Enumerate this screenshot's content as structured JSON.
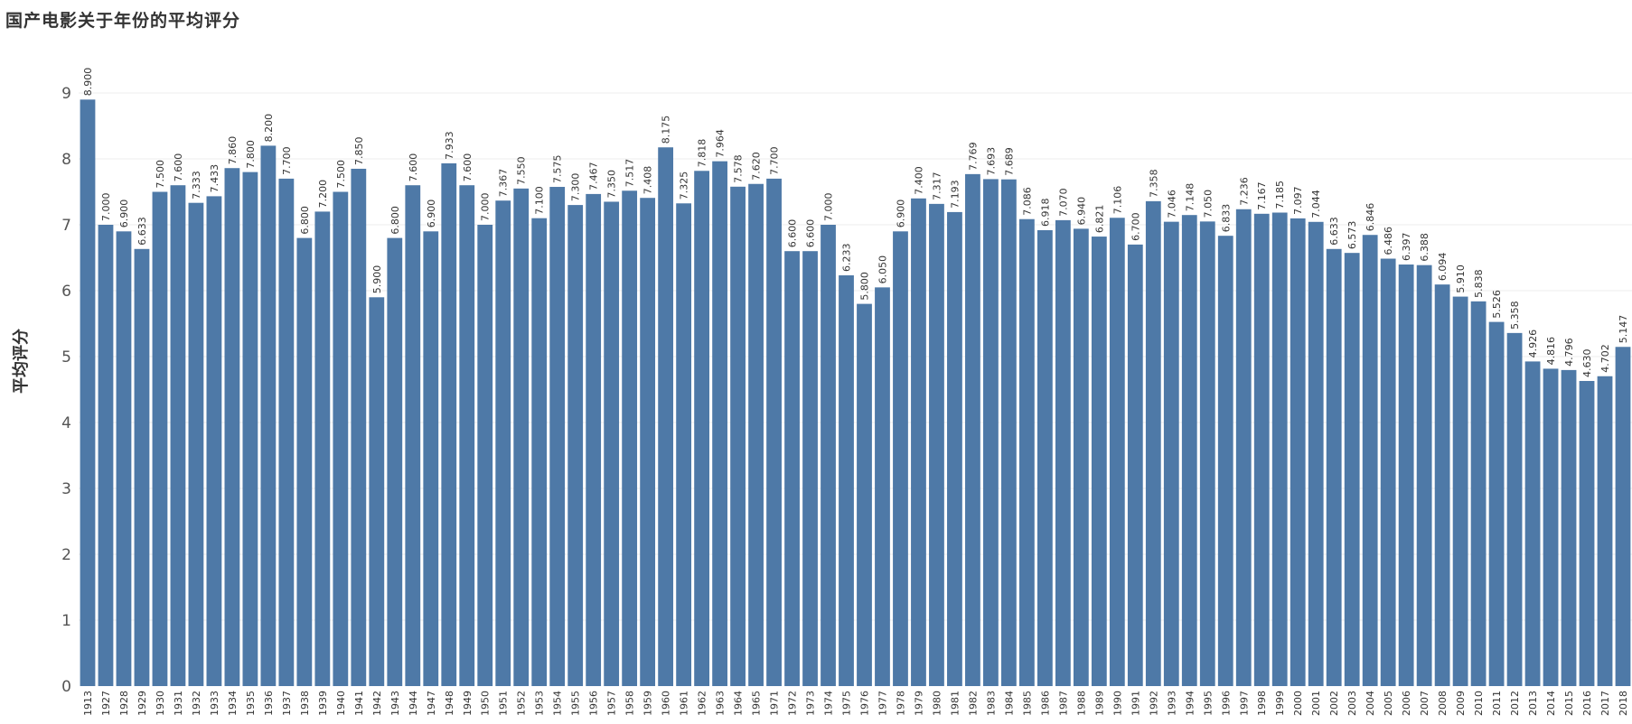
{
  "chart_data": {
    "type": "bar",
    "title": "国产电影关于年份的平均评分",
    "xlabel": "",
    "ylabel": "平均评分",
    "ylim": [
      0,
      9.5
    ],
    "yticks": [
      "0",
      "1",
      "2",
      "3",
      "4",
      "5",
      "6",
      "7",
      "8",
      "9"
    ],
    "grid": true,
    "bar_color": "#4e79a7",
    "categories": [
      "1913",
      "1927",
      "1928",
      "1929",
      "1930",
      "1931",
      "1932",
      "1933",
      "1934",
      "1935",
      "1936",
      "1937",
      "1938",
      "1939",
      "1940",
      "1941",
      "1942",
      "1943",
      "1944",
      "1947",
      "1948",
      "1949",
      "1950",
      "1951",
      "1952",
      "1953",
      "1954",
      "1955",
      "1956",
      "1957",
      "1958",
      "1959",
      "1960",
      "1961",
      "1962",
      "1963",
      "1964",
      "1965",
      "1971",
      "1972",
      "1973",
      "1974",
      "1975",
      "1976",
      "1977",
      "1978",
      "1979",
      "1980",
      "1981",
      "1982",
      "1983",
      "1984",
      "1985",
      "1986",
      "1987",
      "1988",
      "1989",
      "1990",
      "1991",
      "1992",
      "1993",
      "1994",
      "1995",
      "1996",
      "1997",
      "1998",
      "1999",
      "2000",
      "2001",
      "2002",
      "2003",
      "2004",
      "2005",
      "2006",
      "2007",
      "2008",
      "2009",
      "2010",
      "2011",
      "2012",
      "2013",
      "2014",
      "2015",
      "2016",
      "2017",
      "2018"
    ],
    "values": [
      8.9,
      7.0,
      6.9,
      6.633,
      7.5,
      7.6,
      7.333,
      7.433,
      7.86,
      7.8,
      8.2,
      7.7,
      6.8,
      7.2,
      7.5,
      7.85,
      5.9,
      6.8,
      7.6,
      6.9,
      7.933,
      7.6,
      7.0,
      7.367,
      7.55,
      7.1,
      7.575,
      7.3,
      7.467,
      7.35,
      7.517,
      7.408,
      8.175,
      7.325,
      7.818,
      7.964,
      7.578,
      7.62,
      7.7,
      6.6,
      6.6,
      7.0,
      6.233,
      5.8,
      6.05,
      6.9,
      7.4,
      7.317,
      7.193,
      7.769,
      7.693,
      7.689,
      7.086,
      6.918,
      7.07,
      6.94,
      6.821,
      7.106,
      6.7,
      7.358,
      7.046,
      7.148,
      7.05,
      6.833,
      7.236,
      7.167,
      7.185,
      7.097,
      7.044,
      6.633,
      6.573,
      6.846,
      6.486,
      6.397,
      6.388,
      6.094,
      5.91,
      5.838,
      5.526,
      5.358,
      4.926,
      4.816,
      4.796,
      4.63,
      4.702,
      5.147
    ],
    "labels": [
      "8.900",
      "7.000",
      "6.900",
      "6.633",
      "7.500",
      "7.600",
      "7.333",
      "7.433",
      "7.860",
      "7.800",
      "8.200",
      "7.700",
      "6.800",
      "7.200",
      "7.500",
      "7.850",
      "5.900",
      "6.800",
      "7.600",
      "6.900",
      "7.933",
      "7.600",
      "7.000",
      "7.367",
      "7.550",
      "7.100",
      "7.575",
      "7.300",
      "7.467",
      "7.350",
      "7.517",
      "7.408",
      "8.175",
      "7.325",
      "7.818",
      "7.964",
      "7.578",
      "7.620",
      "7.700",
      "6.600",
      "6.600",
      "7.000",
      "6.233",
      "5.800",
      "6.050",
      "6.900",
      "7.400",
      "7.317",
      "7.193",
      "7.769",
      "7.693",
      "7.689",
      "7.086",
      "6.918",
      "7.070",
      "6.940",
      "6.821",
      "7.106",
      "6.700",
      "7.358",
      "7.046",
      "7.148",
      "7.050",
      "6.833",
      "7.236",
      "7.167",
      "7.185",
      "7.097",
      "7.044",
      "6.633",
      "6.573",
      "6.846",
      "6.486",
      "6.397",
      "6.388",
      "6.094",
      "5.910",
      "5.838",
      "5.526",
      "5.358",
      "4.926",
      "4.816",
      "4.796",
      "4.630",
      "4.702",
      "5.147"
    ]
  }
}
